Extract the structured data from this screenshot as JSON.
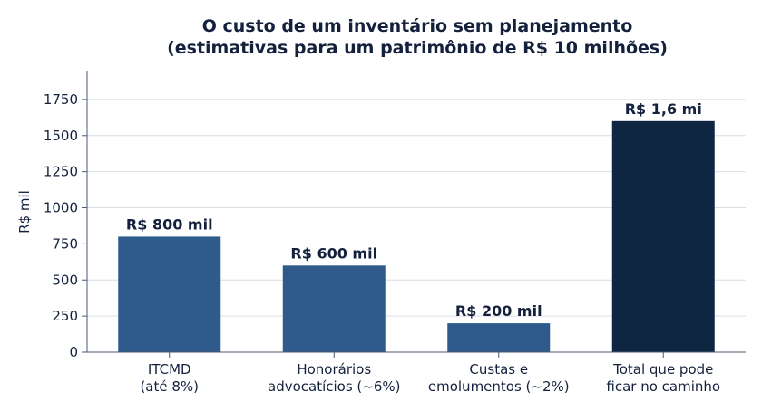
{
  "chart_data": {
    "type": "bar",
    "title_lines": [
      "O custo de um inventário sem planejamento",
      "(estimativas para um patrimônio de R$ 10 milhões)"
    ],
    "xlabel": "",
    "ylabel": "R$ mil",
    "ylim": [
      0,
      1950
    ],
    "yticks": [
      0,
      250,
      500,
      750,
      1000,
      1250,
      1500,
      1750
    ],
    "grid": "horizontal",
    "categories": [
      [
        "ITCMD",
        "(até 8%)"
      ],
      [
        "Honorários",
        "advocatícios (~6%)"
      ],
      [
        "Custas e",
        "emolumentos (~2%)"
      ],
      [
        "Total que pode",
        "ficar no caminho"
      ]
    ],
    "values": [
      800,
      600,
      200,
      1600
    ],
    "data_labels": [
      "R$ 800 mil",
      "R$ 600 mil",
      "R$ 200 mil",
      "R$ 1,6 mi"
    ],
    "colors": [
      "#2e5a8c",
      "#2e5a8c",
      "#2e5a8c",
      "#0f2642"
    ]
  }
}
